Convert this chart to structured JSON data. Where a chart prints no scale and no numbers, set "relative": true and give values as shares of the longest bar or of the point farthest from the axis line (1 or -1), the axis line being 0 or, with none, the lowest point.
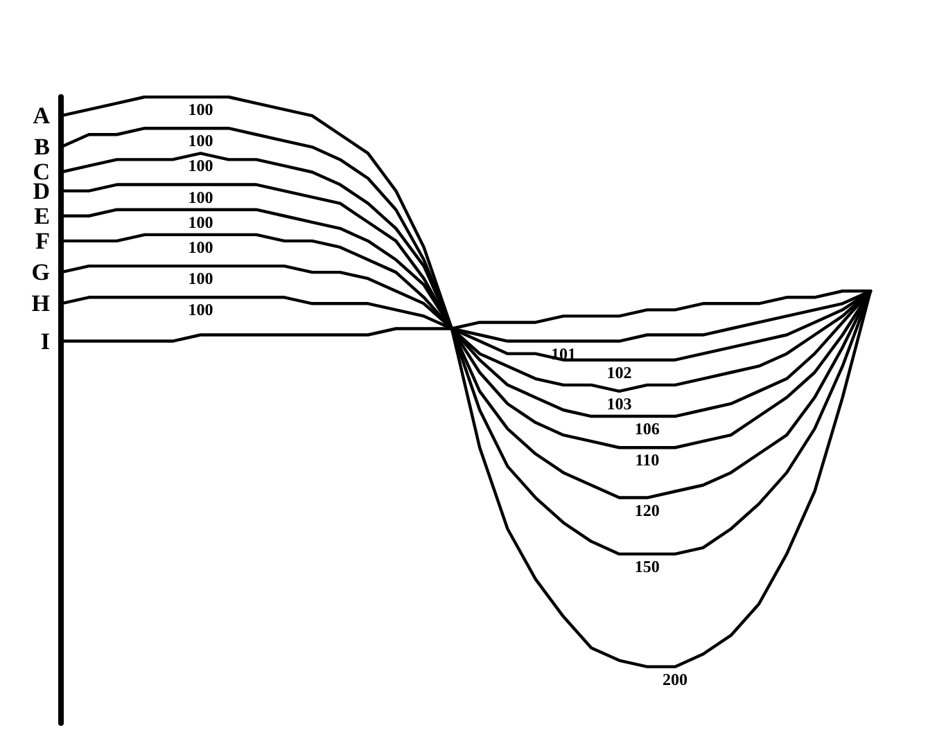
{
  "chart_data": {
    "type": "line",
    "relative": true,
    "grid": false,
    "legend": false,
    "marker": "none",
    "line_style": "solid",
    "annotations": [
      {
        "text": "100",
        "y": 1.0
      },
      {
        "text": "100",
        "y": 0.95
      },
      {
        "text": "100",
        "y": 0.91
      },
      {
        "text": "100",
        "y": 0.86
      },
      {
        "text": "100",
        "y": 0.82
      },
      {
        "text": "100",
        "y": 0.78
      },
      {
        "text": "100",
        "y": 0.73
      },
      {
        "text": "100",
        "y": 0.68
      },
      {
        "text": "200",
        "y": 0.09
      },
      {
        "text": "150",
        "y": 0.27
      },
      {
        "text": "120",
        "y": 0.36
      },
      {
        "text": "110",
        "y": 0.44
      },
      {
        "text": "106",
        "y": 0.49
      },
      {
        "text": "103",
        "y": 0.53
      },
      {
        "text": "102",
        "y": 0.58
      },
      {
        "text": "101",
        "y": 0.61
      }
    ],
    "categories": [
      null,
      null,
      null,
      null,
      null,
      null,
      null,
      null,
      null,
      null,
      null,
      null,
      null,
      null,
      null,
      null,
      null,
      null,
      null,
      null,
      null,
      null,
      null,
      null,
      null,
      null,
      null,
      null,
      null,
      null
    ],
    "series": [
      {
        "name": "A",
        "color": "#000000",
        "values": [
          0.97,
          0.98,
          0.99,
          1.0,
          1.0,
          1.0,
          1.0,
          0.99,
          0.98,
          0.97,
          0.94,
          0.91,
          0.85,
          0.76,
          0.63,
          0.44,
          0.31,
          0.23,
          0.17,
          0.12,
          0.1,
          0.09,
          0.09,
          0.11,
          0.14,
          0.19,
          0.27,
          0.37,
          0.52,
          0.69
        ]
      },
      {
        "name": "B",
        "color": "#000000",
        "values": [
          0.92,
          0.94,
          0.94,
          0.95,
          0.95,
          0.95,
          0.95,
          0.94,
          0.93,
          0.92,
          0.9,
          0.87,
          0.82,
          0.74,
          0.63,
          0.5,
          0.41,
          0.36,
          0.32,
          0.29,
          0.27,
          0.27,
          0.27,
          0.28,
          0.31,
          0.35,
          0.4,
          0.47,
          0.57,
          0.69
        ]
      },
      {
        "name": "C",
        "color": "#000000",
        "values": [
          0.88,
          0.89,
          0.9,
          0.9,
          0.9,
          0.91,
          0.9,
          0.9,
          0.89,
          0.88,
          0.86,
          0.83,
          0.79,
          0.73,
          0.63,
          0.53,
          0.47,
          0.43,
          0.4,
          0.38,
          0.36,
          0.36,
          0.37,
          0.38,
          0.4,
          0.43,
          0.46,
          0.52,
          0.6,
          0.69
        ]
      },
      {
        "name": "D",
        "color": "#000000",
        "values": [
          0.85,
          0.85,
          0.86,
          0.86,
          0.86,
          0.86,
          0.86,
          0.86,
          0.85,
          0.84,
          0.83,
          0.8,
          0.77,
          0.71,
          0.63,
          0.56,
          0.51,
          0.48,
          0.46,
          0.45,
          0.44,
          0.44,
          0.44,
          0.45,
          0.46,
          0.49,
          0.52,
          0.56,
          0.62,
          0.69
        ]
      },
      {
        "name": "E",
        "color": "#000000",
        "values": [
          0.81,
          0.81,
          0.82,
          0.82,
          0.82,
          0.82,
          0.82,
          0.82,
          0.81,
          0.8,
          0.79,
          0.77,
          0.74,
          0.7,
          0.63,
          0.58,
          0.54,
          0.52,
          0.5,
          0.49,
          0.49,
          0.49,
          0.49,
          0.5,
          0.51,
          0.53,
          0.55,
          0.59,
          0.64,
          0.69
        ]
      },
      {
        "name": "F",
        "color": "#000000",
        "values": [
          0.77,
          0.77,
          0.77,
          0.78,
          0.78,
          0.78,
          0.78,
          0.78,
          0.77,
          0.77,
          0.76,
          0.74,
          0.72,
          0.68,
          0.63,
          0.59,
          0.57,
          0.55,
          0.54,
          0.54,
          0.53,
          0.54,
          0.54,
          0.55,
          0.56,
          0.57,
          0.59,
          0.62,
          0.65,
          0.69
        ]
      },
      {
        "name": "G",
        "color": "#000000",
        "values": [
          0.72,
          0.73,
          0.73,
          0.73,
          0.73,
          0.73,
          0.73,
          0.73,
          0.73,
          0.72,
          0.72,
          0.71,
          0.69,
          0.67,
          0.63,
          0.61,
          0.59,
          0.59,
          0.58,
          0.58,
          0.58,
          0.58,
          0.58,
          0.59,
          0.6,
          0.61,
          0.62,
          0.64,
          0.66,
          0.69
        ]
      },
      {
        "name": "H",
        "color": "#000000",
        "values": [
          0.67,
          0.68,
          0.68,
          0.68,
          0.68,
          0.68,
          0.68,
          0.68,
          0.68,
          0.67,
          0.67,
          0.67,
          0.66,
          0.65,
          0.63,
          0.62,
          0.61,
          0.61,
          0.61,
          0.61,
          0.61,
          0.62,
          0.62,
          0.62,
          0.63,
          0.64,
          0.65,
          0.66,
          0.67,
          0.69
        ]
      },
      {
        "name": "I",
        "color": "#000000",
        "values": [
          0.61,
          0.61,
          0.61,
          0.61,
          0.61,
          0.62,
          0.62,
          0.62,
          0.62,
          0.62,
          0.62,
          0.62,
          0.63,
          0.63,
          0.63,
          0.64,
          0.64,
          0.64,
          0.65,
          0.65,
          0.65,
          0.66,
          0.66,
          0.67,
          0.67,
          0.67,
          0.68,
          0.68,
          0.69,
          0.69
        ]
      }
    ]
  }
}
